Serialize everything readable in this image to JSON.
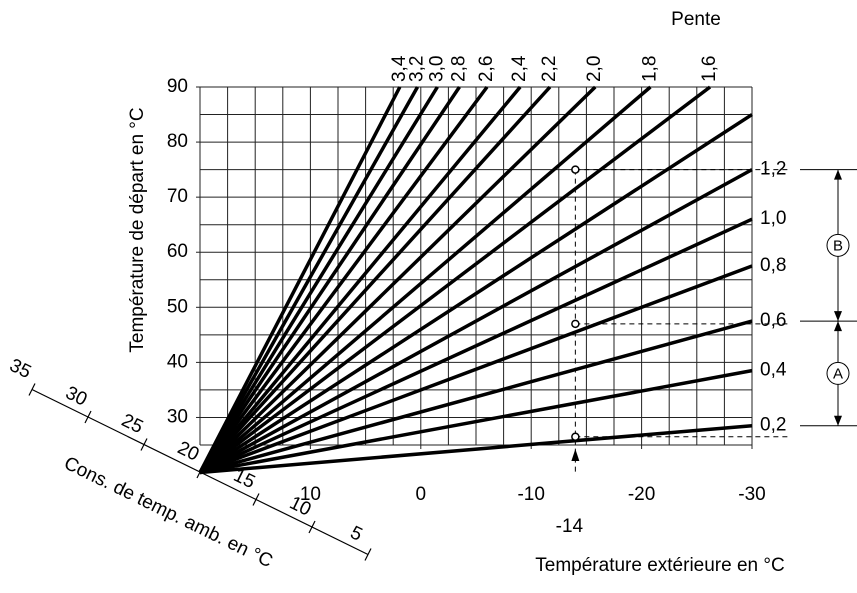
{
  "chart_data": {
    "type": "line",
    "x_label": "Température extérieure en °C",
    "y_label": "Température de départ en °C",
    "series_title": "Pente",
    "xlim": [
      20,
      -30
    ],
    "ylim": [
      25,
      90
    ],
    "xticks": [
      10,
      0,
      -10,
      -20,
      -30
    ],
    "yticks": [
      30,
      40,
      50,
      60,
      70,
      80,
      90
    ],
    "grid": true,
    "color": "#000000",
    "series": [
      {
        "name": "0,2",
        "x": [
          20,
          -30
        ],
        "values": [
          20,
          28.5
        ]
      },
      {
        "name": "0,4",
        "x": [
          20,
          -30
        ],
        "values": [
          20,
          38.5
        ]
      },
      {
        "name": "0,6",
        "x": [
          20,
          -30
        ],
        "values": [
          20,
          47.5
        ]
      },
      {
        "name": "0,8",
        "x": [
          20,
          -30
        ],
        "values": [
          20,
          57.5
        ]
      },
      {
        "name": "1,0",
        "x": [
          20,
          -30
        ],
        "values": [
          20,
          66
        ]
      },
      {
        "name": "1,2",
        "x": [
          20,
          -30
        ],
        "values": [
          20,
          75
        ]
      },
      {
        "name": null,
        "x": [
          20,
          -30
        ],
        "values": [
          20,
          85
        ]
      },
      {
        "name": "1,6",
        "x": [
          20,
          -26.2
        ],
        "values": [
          20,
          90
        ]
      },
      {
        "name": "1,8",
        "x": [
          20,
          -20.8
        ],
        "values": [
          20,
          90
        ]
      },
      {
        "name": "2,0",
        "x": [
          20,
          -15.8
        ],
        "values": [
          20,
          90
        ]
      },
      {
        "name": "2,2",
        "x": [
          20,
          -11.7
        ],
        "values": [
          20,
          90
        ]
      },
      {
        "name": "2,4",
        "x": [
          20,
          -9
        ],
        "values": [
          20,
          90
        ]
      },
      {
        "name": "2,6",
        "x": [
          20,
          -6
        ],
        "values": [
          20,
          90
        ]
      },
      {
        "name": "2,8",
        "x": [
          20,
          -3.5
        ],
        "values": [
          20,
          90
        ]
      },
      {
        "name": "3,0",
        "x": [
          20,
          -1.5
        ],
        "values": [
          20,
          90
        ]
      },
      {
        "name": "3,2",
        "x": [
          20,
          0.3
        ],
        "values": [
          20,
          90
        ]
      },
      {
        "name": "3,4",
        "x": [
          20,
          1.9
        ],
        "values": [
          20,
          90
        ]
      }
    ],
    "example": {
      "x": -14,
      "values": [
        26.5,
        47,
        75
      ]
    },
    "room_label": "Cons. de temp. amb. en °C",
    "room_ticks": [
      35,
      30,
      25,
      20,
      15,
      10,
      5
    ],
    "ranges": [
      {
        "label": "B"
      },
      {
        "label": "A"
      }
    ]
  }
}
